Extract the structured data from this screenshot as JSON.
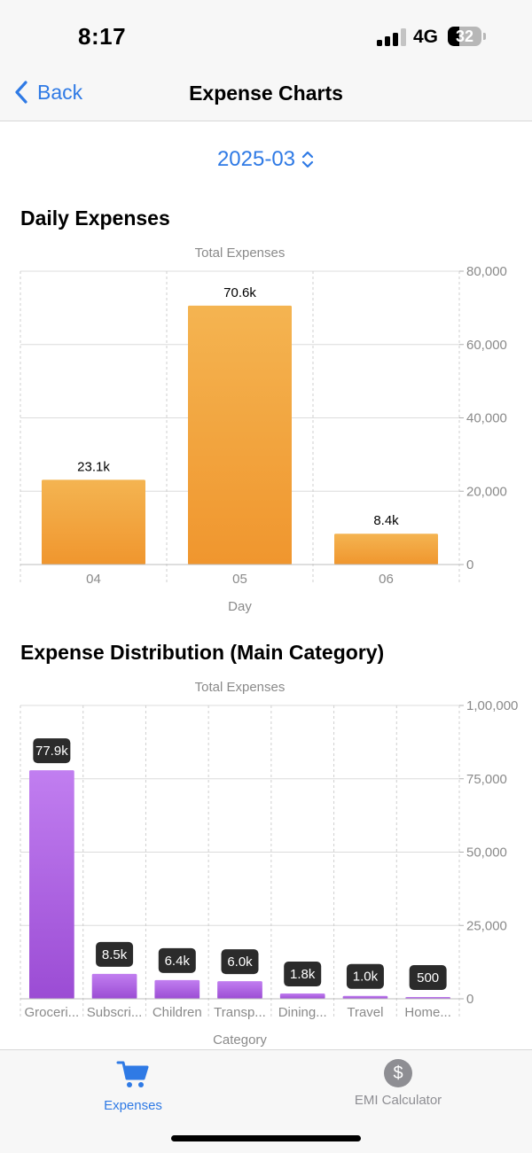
{
  "status_bar": {
    "time": "8:17",
    "network": "4G",
    "battery": "32"
  },
  "nav": {
    "back_label": "Back",
    "title": "Expense Charts"
  },
  "month_picker": {
    "value": "2025-03"
  },
  "daily": {
    "section_title": "Daily Expenses"
  },
  "distribution": {
    "section_title": "Expense Distribution (Main Category)"
  },
  "chart_data": [
    {
      "type": "bar",
      "title": "Total Expenses",
      "xlabel": "Day",
      "ylabel": "",
      "categories": [
        "04",
        "05",
        "06"
      ],
      "values": [
        23100,
        70600,
        8400
      ],
      "value_labels": [
        "23.1k",
        "70.6k",
        "8.4k"
      ],
      "y_ticks": [
        "0",
        "20,000",
        "40,000",
        "60,000",
        "80,000"
      ],
      "ylim": [
        0,
        80000
      ],
      "grid": true,
      "color": "#f0a23a"
    },
    {
      "type": "bar",
      "title": "Total Expenses",
      "xlabel": "Category",
      "ylabel": "",
      "categories": [
        "Groceri...",
        "Subscri...",
        "Children",
        "Transp...",
        "Dining...",
        "Travel",
        "Home..."
      ],
      "values": [
        77900,
        8500,
        6400,
        6000,
        1800,
        1000,
        500
      ],
      "value_labels": [
        "77.9k",
        "8.5k",
        "6.4k",
        "6.0k",
        "1.8k",
        "1.0k",
        "500"
      ],
      "y_ticks": [
        "0",
        "25,000",
        "50,000",
        "75,000",
        "1,00,000"
      ],
      "ylim": [
        0,
        100000
      ],
      "grid": true,
      "color": "#a452d8"
    }
  ],
  "tab_bar": {
    "items": [
      {
        "label": "Expenses",
        "icon": "cart-icon",
        "active": true,
        "color": "#2f7ae5"
      },
      {
        "label": "EMI Calculator",
        "icon": "dollar-circle-icon",
        "active": false,
        "color": "#8e8e93"
      }
    ],
    "emi_symbol": "$"
  }
}
